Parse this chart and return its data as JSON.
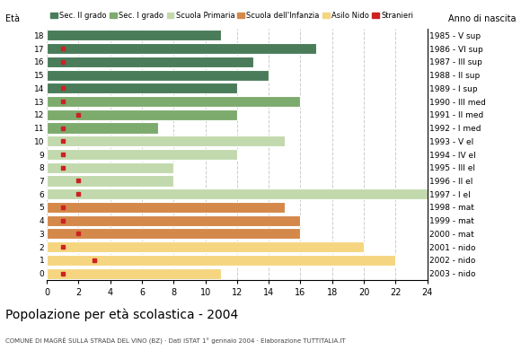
{
  "ages": [
    18,
    17,
    16,
    15,
    14,
    13,
    12,
    11,
    10,
    9,
    8,
    7,
    6,
    5,
    4,
    3,
    2,
    1,
    0
  ],
  "years": [
    "1985 - V sup",
    "1986 - VI sup",
    "1987 - III sup",
    "1988 - II sup",
    "1989 - I sup",
    "1990 - III med",
    "1991 - II med",
    "1992 - I med",
    "1993 - V el",
    "1994 - IV el",
    "1995 - III el",
    "1996 - II el",
    "1997 - I el",
    "1998 - mat",
    "1999 - mat",
    "2000 - mat",
    "2001 - nido",
    "2002 - nido",
    "2003 - nido"
  ],
  "bar_values": [
    11,
    17,
    13,
    14,
    12,
    16,
    12,
    7,
    15,
    12,
    8,
    8,
    24,
    15,
    16,
    16,
    20,
    22,
    11
  ],
  "stranieri": [
    0,
    1,
    1,
    0,
    1,
    1,
    2,
    1,
    1,
    1,
    1,
    2,
    2,
    1,
    1,
    2,
    1,
    3,
    1
  ],
  "categories": {
    "sec2": [
      18,
      17,
      16,
      15,
      14
    ],
    "sec1": [
      13,
      12,
      11
    ],
    "primaria": [
      10,
      9,
      8,
      7,
      6
    ],
    "infanzia": [
      5,
      4,
      3
    ],
    "nido": [
      2,
      1,
      0
    ]
  },
  "colors": {
    "sec2": "#4a7c59",
    "sec1": "#7dab6e",
    "primaria": "#c2d9ad",
    "infanzia": "#d4884a",
    "nido": "#f5d580",
    "stranieri": "#cc2222"
  },
  "legend_labels": [
    "Sec. II grado",
    "Sec. I grado",
    "Scuola Primaria",
    "Scuola dell'Infanzia",
    "Asilo Nido",
    "Stranieri"
  ],
  "title": "Popolazione per età scolastica - 2004",
  "subtitle": "COMUNE DI MAGRÈ SULLA STRADA DEL VINO (BZ) · Dati ISTAT 1° gennaio 2004 · Elaborazione TUTTITALIA.IT",
  "label_eta": "Età",
  "label_anno": "Anno di nascita",
  "xlim": [
    0,
    24
  ],
  "xticks": [
    0,
    2,
    4,
    6,
    8,
    10,
    12,
    14,
    16,
    18,
    20,
    22,
    24
  ],
  "background_color": "#ffffff",
  "grid_color": "#cccccc"
}
